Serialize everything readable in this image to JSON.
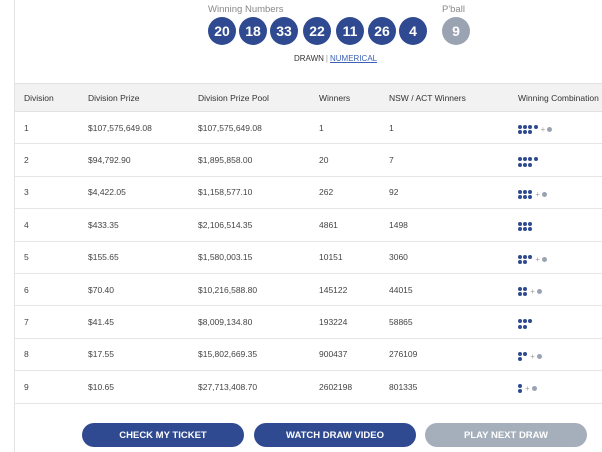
{
  "header": {
    "winning_label": "Winning Numbers",
    "pball_label": "P'ball",
    "winning_numbers": [
      "20",
      "18",
      "33",
      "22",
      "11",
      "26",
      "4"
    ],
    "powerball": "9",
    "sort_drawn": "DRAWN",
    "sort_separator": "|",
    "sort_numerical": "NUMERICAL"
  },
  "table": {
    "columns": [
      "Division",
      "Division Prize",
      "Division Prize Pool",
      "Winners",
      "NSW / ACT Winners",
      "Winning Combination"
    ],
    "rows": [
      {
        "division": "1",
        "prize": "$107,575,649.08",
        "pool": "$107,575,649.08",
        "winners": "1",
        "nsw": "1"
      },
      {
        "division": "2",
        "prize": "$94,792.90",
        "pool": "$1,895,858.00",
        "winners": "20",
        "nsw": "7"
      },
      {
        "division": "3",
        "prize": "$4,422.05",
        "pool": "$1,158,577.10",
        "winners": "262",
        "nsw": "92"
      },
      {
        "division": "4",
        "prize": "$433.35",
        "pool": "$2,106,514.35",
        "winners": "4861",
        "nsw": "1498"
      },
      {
        "division": "5",
        "prize": "$155.65",
        "pool": "$1,580,003.15",
        "winners": "10151",
        "nsw": "3060"
      },
      {
        "division": "6",
        "prize": "$70.40",
        "pool": "$10,216,588.80",
        "winners": "145122",
        "nsw": "44015"
      },
      {
        "division": "7",
        "prize": "$41.45",
        "pool": "$8,009,134.80",
        "winners": "193224",
        "nsw": "58865"
      },
      {
        "division": "8",
        "prize": "$17.55",
        "pool": "$15,802,669.35",
        "winners": "900437",
        "nsw": "276109"
      },
      {
        "division": "9",
        "prize": "$10.65",
        "pool": "$27,713,408.70",
        "winners": "2602198",
        "nsw": "801335"
      }
    ],
    "combinations": [
      {
        "main_count": 7,
        "powerball": true
      },
      {
        "main_count": 7,
        "powerball": false
      },
      {
        "main_count": 6,
        "powerball": true
      },
      {
        "main_count": 6,
        "powerball": false
      },
      {
        "main_count": 5,
        "powerball": true
      },
      {
        "main_count": 4,
        "powerball": true
      },
      {
        "main_count": 5,
        "powerball": false
      },
      {
        "main_count": 3,
        "powerball": true
      },
      {
        "main_count": 2,
        "powerball": true
      }
    ],
    "combination_plus": "+"
  },
  "buttons": {
    "check_ticket": "CHECK MY TICKET",
    "watch_video": "WATCH DRAW VIDEO",
    "play_next": "PLAY NEXT DRAW"
  },
  "colors": {
    "ball_blue": "#2f4a91",
    "powerball_grey": "#9aa3b1",
    "link_blue": "#3d61b6",
    "disabled_grey": "#a5aebb"
  }
}
